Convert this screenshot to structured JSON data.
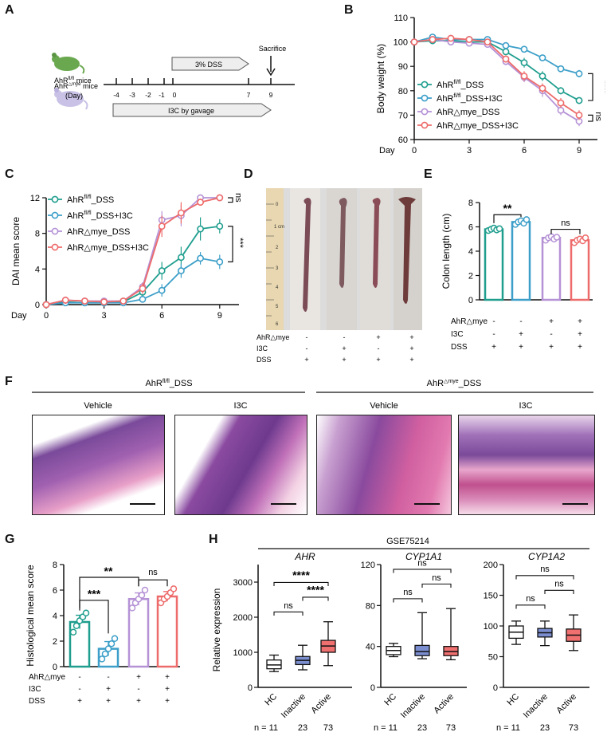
{
  "colors": {
    "teal": "#1f9e8e",
    "blue": "#3d9fc9",
    "purple": "#b592d6",
    "red": "#ee6b6b",
    "box_hc": "#ffffff",
    "box_inactive": "#7b8ed0",
    "box_active": "#f07070",
    "tissue_pink": "#e58fbf",
    "tissue_purple": "#6e3a8e",
    "mouse_green": "#6aa84f",
    "mouse_lilac": "#c9c2e6"
  },
  "panel_labels": [
    "A",
    "B",
    "C",
    "D",
    "E",
    "F",
    "G",
    "H"
  ],
  "panelA": {
    "mouse1": "AhR",
    "mouse1_sup": "fl/fl",
    "mouse1_suffix": " mice",
    "mouse2": "AhR",
    "mouse2_sup": "△mye",
    "mouse2_suffix": " mice",
    "day_label": "(Day)",
    "ticks": [
      "-4",
      "-3",
      "-2",
      "-1",
      "0",
      "7",
      "9"
    ],
    "dss_arrow": "3% DSS",
    "i3c_arrow": "I3C by gavage",
    "sacrifice": "Sacrifice",
    "mouse_icons": [
      "mouse-green",
      "mouse-lilac"
    ]
  },
  "panelD": {
    "ruler_numbers": [
      "0",
      "1 cm",
      "2",
      "3",
      "4",
      "5",
      "6"
    ],
    "row_labels": [
      "AhR△mye",
      "I3C",
      "DSS"
    ],
    "signs": [
      [
        "-",
        "-",
        "+",
        "+"
      ],
      [
        "-",
        "+",
        "-",
        "+"
      ],
      [
        "+",
        "+",
        "+",
        "+"
      ]
    ]
  },
  "panelF": {
    "group1": "AhR",
    "group1_sup": "fl/fl",
    "group1_suffix": "_DSS",
    "group2": "AhR",
    "group2_sup": "△mye",
    "group2_suffix": "_DSS",
    "sub": [
      "Vehicle",
      "I3C",
      "Vehicle",
      "I3C"
    ]
  },
  "chart_data": [
    {
      "id": "B",
      "type": "line",
      "xlabel": "Day",
      "ylabel": "Body weight (%)",
      "xlim": [
        0,
        10
      ],
      "ylim": [
        60,
        110
      ],
      "xticks": [
        "0",
        "3",
        "6",
        "9"
      ],
      "yticks": [
        "60",
        "70",
        "80",
        "90",
        "100",
        "110"
      ],
      "x": [
        0,
        1,
        2,
        3,
        4,
        5,
        6,
        7,
        8,
        9
      ],
      "series": [
        {
          "name": "AhRfl/fl_DSS",
          "color": "teal",
          "values": [
            100,
            100.5,
            100.5,
            100,
            100,
            96,
            91.5,
            86,
            80,
            76
          ],
          "err": [
            0.5,
            1,
            1,
            1,
            0.5,
            1,
            2,
            2,
            1.5,
            1
          ]
        },
        {
          "name": "AhRfl/fl_DSS+I3C",
          "color": "blue",
          "values": [
            100,
            102,
            101,
            101,
            101,
            98.5,
            97,
            93.5,
            89,
            87
          ],
          "err": [
            0.5,
            0.5,
            0.8,
            0.8,
            0.5,
            0.8,
            0.8,
            1,
            1.2,
            1.5
          ]
        },
        {
          "name": "AhR△mye_DSS",
          "color": "purple",
          "values": [
            100,
            101,
            100,
            99.5,
            99,
            92,
            85.5,
            80,
            72,
            67.5
          ],
          "err": [
            0.5,
            0.8,
            0.8,
            0.8,
            1,
            1.5,
            2,
            2.5,
            2,
            2
          ]
        },
        {
          "name": "AhR△mye_DSS+I3C",
          "color": "red",
          "values": [
            100,
            101,
            101.5,
            101,
            100,
            93,
            86,
            81,
            75,
            70
          ],
          "err": [
            0.5,
            1,
            1,
            1,
            1,
            1.5,
            2,
            2,
            2,
            2
          ]
        }
      ],
      "legend": [
        "AhRfl/fl_DSS",
        "AhRfl/fl_DSS+I3C",
        "AhR△mye_DSS",
        "AhR△mye_DSS+I3C"
      ],
      "annotations": [
        "****",
        "ns"
      ]
    },
    {
      "id": "C",
      "type": "line",
      "xlabel": "Day",
      "ylabel": "DAI mean score",
      "xlim": [
        0,
        10
      ],
      "ylim": [
        0,
        12
      ],
      "xticks": [
        "0",
        "3",
        "6",
        "9"
      ],
      "yticks": [
        "0",
        "4",
        "8",
        "12"
      ],
      "x": [
        0,
        1,
        2,
        3,
        4,
        5,
        6,
        7,
        8,
        9
      ],
      "series": [
        {
          "name": "AhRfl/fl_DSS",
          "color": "teal",
          "values": [
            0,
            0.3,
            0.2,
            0.2,
            0.3,
            1.4,
            3.8,
            5.3,
            8.5,
            8.8
          ],
          "err": [
            0.2,
            0.3,
            0.2,
            0.2,
            0.2,
            0.5,
            1,
            1.2,
            1.3,
            0.8
          ]
        },
        {
          "name": "AhRfl/fl_DSS+I3C",
          "color": "blue",
          "values": [
            0,
            0.2,
            0.2,
            0.2,
            0.2,
            0.6,
            1.6,
            3.8,
            5.2,
            4.8
          ],
          "err": [
            0.2,
            0.2,
            0.2,
            0.2,
            0.2,
            0.3,
            0.7,
            0.8,
            0.7,
            0.8
          ]
        },
        {
          "name": "AhR△mye_DSS",
          "color": "purple",
          "values": [
            0,
            0.5,
            0.4,
            0.4,
            0.4,
            2,
            9.5,
            10,
            12,
            12
          ],
          "err": [
            0.3,
            0.4,
            0.3,
            0.3,
            0.3,
            0.5,
            1,
            1.2,
            0.2,
            0.2
          ]
        },
        {
          "name": "AhR△mye_DSS+I3C",
          "color": "red",
          "values": [
            0,
            0.5,
            0.4,
            0.3,
            0.4,
            1.8,
            8.8,
            10.3,
            11.5,
            12
          ],
          "err": [
            0.3,
            0.4,
            0.3,
            0.3,
            0.3,
            0.6,
            1.2,
            1.2,
            0.4,
            0.2
          ]
        }
      ],
      "legend": [
        "AhRfl/fl_DSS",
        "AhRfl/fl_DSS+I3C",
        "AhR△mye_DSS",
        "AhR△mye_DSS+I3C"
      ],
      "annotations": [
        "ns",
        "***"
      ]
    },
    {
      "id": "E",
      "type": "bar",
      "ylabel": "Colon length (cm)",
      "ylim": [
        0,
        8
      ],
      "yticks": [
        "0",
        "2",
        "4",
        "6",
        "8"
      ],
      "values": [
        5.8,
        6.4,
        5.1,
        4.9
      ],
      "points": [
        [
          5.7,
          5.8,
          5.9,
          5.75,
          5.85
        ],
        [
          6.2,
          6.4,
          6.5,
          6.3,
          6.6
        ],
        [
          4.9,
          5.1,
          5.2,
          5.0,
          5.15
        ],
        [
          4.7,
          4.9,
          5.0,
          4.85,
          5.1
        ]
      ],
      "colors": [
        "teal",
        "blue",
        "purple",
        "red"
      ],
      "row_labels": [
        "AhR△mye",
        "I3C",
        "DSS"
      ],
      "signs": [
        [
          "-",
          "-",
          "+",
          "+"
        ],
        [
          "-",
          "+",
          "-",
          "+"
        ],
        [
          "+",
          "+",
          "+",
          "+"
        ]
      ],
      "annotations": [
        "**",
        "ns"
      ]
    },
    {
      "id": "G",
      "type": "bar",
      "ylabel": "Histological mean score",
      "ylim": [
        0,
        8
      ],
      "yticks": [
        "0",
        "2",
        "4",
        "6",
        "8"
      ],
      "values": [
        3.5,
        1.4,
        5.3,
        5.5
      ],
      "points": [
        [
          2.7,
          3.2,
          3.6,
          3.9,
          4.2
        ],
        [
          0.6,
          1.0,
          1.4,
          1.8,
          2.2
        ],
        [
          4.6,
          5.0,
          5.3,
          5.6,
          6.0
        ],
        [
          5.0,
          5.3,
          5.5,
          5.8,
          6.1
        ]
      ],
      "colors": [
        "teal",
        "blue",
        "purple",
        "red"
      ],
      "row_labels": [
        "AhR△mye",
        "I3C",
        "DSS"
      ],
      "signs": [
        [
          "-",
          "-",
          "+",
          "+"
        ],
        [
          "-",
          "+",
          "-",
          "+"
        ],
        [
          "+",
          "+",
          "+",
          "+"
        ]
      ],
      "annotations": [
        "**",
        "ns",
        "***"
      ]
    },
    {
      "id": "H",
      "type": "box",
      "title": "GSE75214",
      "ylabel": "Relative expression",
      "categories": [
        "HC",
        "Inactive",
        "Active"
      ],
      "n_labels": [
        "n = 11",
        "23",
        "73"
      ],
      "panels": [
        {
          "gene": "AHR",
          "ylim": [
            0,
            3500
          ],
          "yticks": [
            "0",
            "1000",
            "2000",
            "3000"
          ],
          "boxes": [
            {
              "min": 450,
              "q1": 530,
              "med": 640,
              "q3": 780,
              "max": 920
            },
            {
              "min": 500,
              "q1": 650,
              "med": 770,
              "q3": 880,
              "max": 1200
            },
            {
              "min": 620,
              "q1": 1000,
              "med": 1180,
              "q3": 1340,
              "max": 1870
            }
          ],
          "annotations": [
            "****",
            "****",
            "ns"
          ]
        },
        {
          "gene": "CYP1A1",
          "ylim": [
            0,
            120
          ],
          "yticks": [
            "0",
            "40",
            "80",
            "120"
          ],
          "boxes": [
            {
              "min": 30,
              "q1": 32,
              "med": 36,
              "q3": 40,
              "max": 43
            },
            {
              "min": 28,
              "q1": 31,
              "med": 35,
              "q3": 41,
              "max": 73
            },
            {
              "min": 27,
              "q1": 31,
              "med": 35,
              "q3": 40,
              "max": 77
            }
          ],
          "annotations": [
            "ns",
            "ns",
            "ns"
          ]
        },
        {
          "gene": "CYP1A2",
          "ylim": [
            0,
            200
          ],
          "yticks": [
            "0",
            "50",
            "100",
            "150",
            "200"
          ],
          "boxes": [
            {
              "min": 70,
              "q1": 80,
              "med": 90,
              "q3": 100,
              "max": 108
            },
            {
              "min": 68,
              "q1": 82,
              "med": 89,
              "q3": 96,
              "max": 108
            },
            {
              "min": 60,
              "q1": 75,
              "med": 85,
              "q3": 95,
              "max": 118
            }
          ],
          "annotations": [
            "ns",
            "ns",
            "ns"
          ]
        }
      ]
    }
  ]
}
